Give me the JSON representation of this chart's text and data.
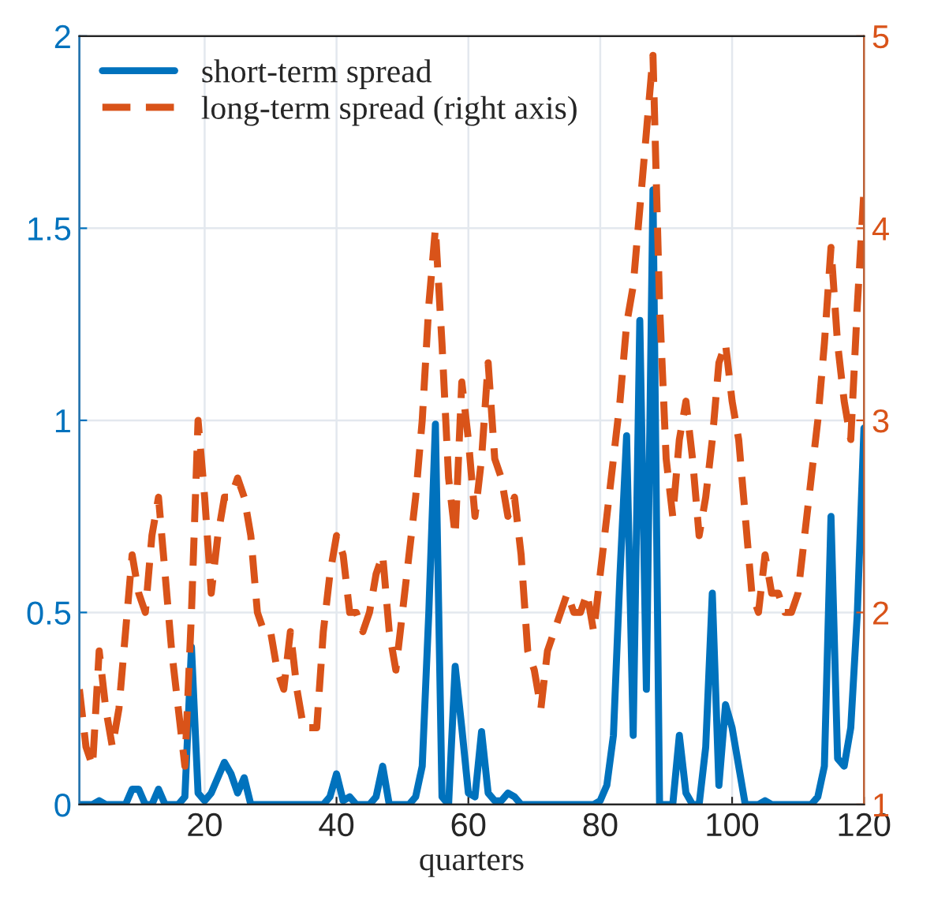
{
  "chart_data": {
    "type": "line",
    "xlabel": "quarters",
    "x": [
      1,
      2,
      3,
      4,
      5,
      6,
      7,
      8,
      9,
      10,
      11,
      12,
      13,
      14,
      15,
      16,
      17,
      18,
      19,
      20,
      21,
      22,
      23,
      24,
      25,
      26,
      27,
      28,
      29,
      30,
      31,
      32,
      33,
      34,
      35,
      36,
      37,
      38,
      39,
      40,
      41,
      42,
      43,
      44,
      45,
      46,
      47,
      48,
      49,
      50,
      51,
      52,
      53,
      54,
      55,
      56,
      57,
      58,
      59,
      60,
      61,
      62,
      63,
      64,
      65,
      66,
      67,
      68,
      69,
      70,
      71,
      72,
      73,
      74,
      75,
      76,
      77,
      78,
      79,
      80,
      81,
      82,
      83,
      84,
      85,
      86,
      87,
      88,
      89,
      90,
      91,
      92,
      93,
      94,
      95,
      96,
      97,
      98,
      99,
      100,
      101,
      102,
      103,
      104,
      105,
      106,
      107,
      108,
      109,
      110,
      111,
      112,
      113,
      114,
      115,
      116,
      117,
      118,
      119,
      120
    ],
    "series": [
      {
        "name": "short-term spread",
        "color": "#0072bd",
        "line_style": "solid",
        "values": [
          0,
          0,
          0,
          0.01,
          0,
          0,
          0,
          0,
          0.04,
          0.04,
          0,
          0,
          0.04,
          0,
          0,
          0,
          0.02,
          0.41,
          0.03,
          0.01,
          0.03,
          0.07,
          0.11,
          0.08,
          0.03,
          0.07,
          0,
          0,
          0,
          0,
          0,
          0,
          0,
          0,
          0,
          0,
          0,
          0,
          0.02,
          0.08,
          0.01,
          0.02,
          0,
          0,
          0,
          0.02,
          0.1,
          0,
          0,
          0,
          0,
          0.02,
          0.1,
          0.5,
          0.99,
          0.02,
          0,
          0.36,
          0.2,
          0.03,
          0.02,
          0.19,
          0.03,
          0.01,
          0.01,
          0.03,
          0.02,
          0,
          0,
          0,
          0,
          0,
          0,
          0,
          0,
          0,
          0,
          0,
          0,
          0.01,
          0.05,
          0.18,
          0.6,
          0.96,
          0.18,
          1.26,
          0.3,
          1.6,
          0,
          0,
          0,
          0.18,
          0.03,
          0,
          0,
          0.15,
          0.55,
          0.05,
          0.26,
          0.2,
          0.1,
          0,
          0,
          0,
          0.01,
          0,
          0,
          0,
          0,
          0,
          0,
          0,
          0.02,
          0.1,
          0.75,
          0.12,
          0.1,
          0.2,
          0.5,
          0.98
        ]
      },
      {
        "name": "long-term spread (right axis)",
        "color": "#d95319",
        "line_style": "dashed",
        "axis": "y2",
        "values": [
          1.6,
          1.3,
          1.2,
          1.8,
          1.5,
          1.3,
          1.5,
          1.9,
          2.3,
          2.1,
          2.0,
          2.4,
          2.6,
          2.2,
          1.8,
          1.5,
          1.2,
          2.0,
          3.0,
          2.6,
          2.1,
          2.4,
          2.6,
          2.6,
          2.7,
          2.6,
          2.4,
          2.0,
          1.9,
          1.9,
          1.7,
          1.6,
          1.9,
          1.6,
          1.4,
          1.4,
          1.4,
          1.9,
          2.2,
          2.4,
          2.3,
          2.0,
          2.0,
          1.9,
          2.0,
          2.2,
          2.3,
          1.9,
          1.7,
          2.0,
          2.3,
          2.6,
          3.0,
          3.6,
          4.0,
          3.4,
          2.7,
          2.4,
          3.2,
          2.9,
          2.5,
          2.8,
          3.3,
          2.8,
          2.7,
          2.5,
          2.6,
          2.3,
          1.8,
          1.7,
          1.5,
          1.8,
          1.9,
          2.0,
          2.1,
          2.0,
          2.0,
          2.1,
          1.9,
          2.2,
          2.5,
          2.8,
          3.1,
          3.5,
          3.7,
          4.1,
          4.5,
          4.9,
          3.6,
          2.8,
          2.5,
          2.9,
          3.1,
          2.8,
          2.4,
          2.6,
          2.9,
          3.3,
          3.4,
          3.1,
          2.9,
          2.5,
          2.1,
          2.0,
          2.3,
          2.1,
          2.1,
          2.0,
          2.0,
          2.1,
          2.4,
          2.7,
          3.0,
          3.4,
          3.9,
          3.4,
          3.1,
          2.9,
          3.6,
          4.2
        ]
      }
    ],
    "xlim": [
      1,
      120
    ],
    "xticks": [
      20,
      40,
      60,
      80,
      100,
      120
    ],
    "ylim": [
      0,
      2
    ],
    "yticks": [
      0,
      0.5,
      1,
      1.5,
      2
    ],
    "y2lim": [
      1,
      5
    ],
    "y2ticks": [
      1,
      2,
      3,
      4,
      5
    ],
    "grid": true,
    "legend": "top left"
  }
}
